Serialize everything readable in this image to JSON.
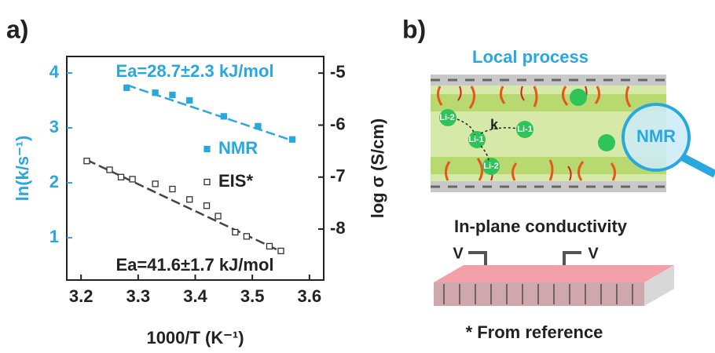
{
  "chart_data": {
    "type": "scatter",
    "panel_label": "a)",
    "xlabel": "1000/T (K⁻¹)",
    "ylabel": "ln(k/s⁻¹)",
    "y2label": "log σ (S/cm)",
    "xlim": [
      3.175,
      3.625
    ],
    "xticks": [
      3.2,
      3.3,
      3.4,
      3.5,
      3.6
    ],
    "ylim": [
      0.23,
      4.3
    ],
    "yticks": [
      1,
      2,
      3,
      4
    ],
    "y2lim": [
      -8.98,
      -4.68
    ],
    "y2ticks": [
      -5,
      -6,
      -7,
      -8
    ],
    "series": [
      {
        "name": "NMR",
        "color": "#29a8e0",
        "filled": true,
        "axis": "y",
        "x": [
          3.28,
          3.33,
          3.36,
          3.39,
          3.45,
          3.51,
          3.57
        ],
        "values": [
          3.73,
          3.64,
          3.6,
          3.5,
          3.21,
          3.03,
          2.79
        ]
      },
      {
        "name": "EIS*",
        "color": "#333333",
        "filled": false,
        "axis": "y2",
        "x": [
          3.21,
          3.25,
          3.27,
          3.29,
          3.33,
          3.36,
          3.39,
          3.42,
          3.44,
          3.47,
          3.49,
          3.53,
          3.55
        ],
        "values": [
          -6.69,
          -6.86,
          -7.0,
          -7.04,
          -7.13,
          -7.23,
          -7.43,
          -7.55,
          -7.75,
          -8.06,
          -8.14,
          -8.33,
          -8.42
        ]
      }
    ],
    "fit_lines": [
      {
        "color": "#29a8e0",
        "axis": "y",
        "x": [
          3.28,
          3.57
        ],
        "values": [
          3.78,
          2.77
        ]
      },
      {
        "color": "#444444",
        "axis": "y2",
        "x": [
          3.21,
          3.55
        ],
        "values": [
          -6.67,
          -8.43
        ]
      }
    ],
    "annotations": [
      "Ea=28.7±2.3 kJ/mol",
      "Ea=41.6±1.7 kJ/mol"
    ]
  },
  "diagram": {
    "panel_label": "b)",
    "title": "Local process",
    "probe": "NMR",
    "sites": [
      "Li-2",
      "Li-1",
      "k",
      "Li-1",
      "Li-2"
    ],
    "subtitle": "In-plane conductivity",
    "electrodes": [
      "V",
      "V"
    ],
    "footnote": "* From reference"
  }
}
